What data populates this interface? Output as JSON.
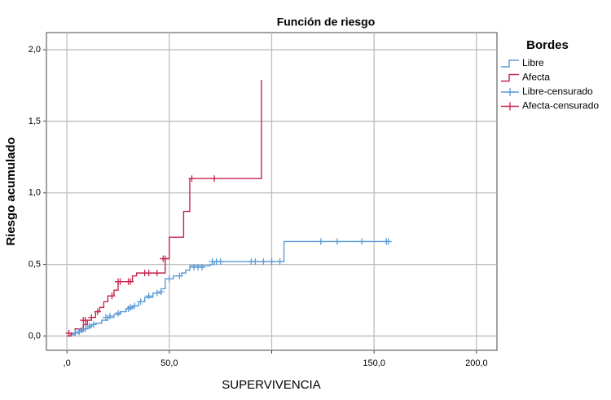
{
  "chart_data": {
    "type": "step",
    "title": "Función de riesgo",
    "xlabel": "SUPERVIVENCIA",
    "ylabel": "Riesgo acumulado",
    "legend_title": "Bordes",
    "legend": "right",
    "grid": true,
    "xlim": [
      -10,
      210
    ],
    "ylim": [
      -0.1,
      2.12
    ],
    "xticks": [
      {
        "value": 0,
        "label": ",0"
      },
      {
        "value": 50,
        "label": "50,0"
      },
      {
        "value": 100,
        "label": null
      },
      {
        "value": 150,
        "label": "150,0"
      },
      {
        "value": 200,
        "label": "200,0"
      }
    ],
    "yticks": [
      {
        "value": 0,
        "label": "0,0"
      },
      {
        "value": 0.5,
        "label": "0,5"
      },
      {
        "value": 1,
        "label": "1,0"
      },
      {
        "value": 1.5,
        "label": "1,5"
      },
      {
        "value": 2,
        "label": "2,0"
      }
    ],
    "series": [
      {
        "name": "Libre",
        "color": "#5b9bd5",
        "mode": "step",
        "x": [
          0,
          2,
          4,
          6,
          8,
          10,
          12,
          14,
          17,
          20,
          23,
          26,
          29,
          32,
          35,
          38,
          42,
          46,
          48,
          52,
          56,
          58,
          60,
          64,
          70,
          72,
          106,
          157
        ],
        "values": [
          0,
          0.01,
          0.02,
          0.03,
          0.05,
          0.06,
          0.08,
          0.09,
          0.11,
          0.13,
          0.15,
          0.17,
          0.19,
          0.21,
          0.24,
          0.27,
          0.3,
          0.33,
          0.4,
          0.42,
          0.44,
          0.46,
          0.49,
          0.49,
          0.5,
          0.52,
          0.66,
          0.66
        ]
      },
      {
        "name": "Afecta",
        "color": "#c8254e",
        "mode": "step",
        "x": [
          0,
          2,
          4,
          8,
          10,
          12,
          14,
          16,
          18,
          20,
          23,
          25,
          32,
          34,
          48,
          50,
          57,
          60,
          95
        ],
        "values": [
          0,
          0.02,
          0.05,
          0.08,
          0.11,
          0.13,
          0.17,
          0.2,
          0.24,
          0.28,
          0.32,
          0.38,
          0.42,
          0.44,
          0.54,
          0.69,
          0.87,
          1.1,
          1.79
        ]
      },
      {
        "name": "Libre-censurado",
        "color": "#5b9bd5",
        "mode": "points",
        "x": [
          4,
          6,
          7,
          9,
          11,
          13,
          19,
          21,
          25,
          30,
          31,
          33,
          36,
          40,
          44,
          46,
          50,
          55,
          62,
          64,
          66,
          71,
          73,
          75,
          90,
          92,
          96,
          100,
          104,
          124,
          132,
          144,
          156,
          157
        ],
        "values": [
          0.02,
          0.03,
          0.04,
          0.05,
          0.07,
          0.08,
          0.13,
          0.14,
          0.16,
          0.19,
          0.2,
          0.21,
          0.24,
          0.28,
          0.3,
          0.31,
          0.4,
          0.42,
          0.48,
          0.48,
          0.48,
          0.52,
          0.52,
          0.52,
          0.52,
          0.52,
          0.52,
          0.52,
          0.52,
          0.66,
          0.66,
          0.66,
          0.66,
          0.66
        ]
      },
      {
        "name": "Afecta-censurado",
        "color": "#c8254e",
        "mode": "points",
        "x": [
          1,
          8,
          9,
          12,
          15,
          22,
          25,
          26,
          30,
          31,
          38,
          40,
          44,
          47,
          48,
          61,
          72
        ],
        "values": [
          0.02,
          0.11,
          0.11,
          0.13,
          0.17,
          0.28,
          0.38,
          0.38,
          0.38,
          0.38,
          0.44,
          0.44,
          0.44,
          0.54,
          0.54,
          1.1,
          1.1
        ]
      }
    ]
  }
}
